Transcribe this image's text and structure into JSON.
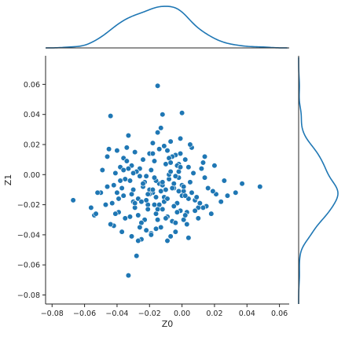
{
  "colors": {
    "points": "#1f77b4",
    "point_edge": "#ffffff",
    "axis": "#262626",
    "kde": "#1f77b4"
  },
  "chart_data": {
    "type": "scatter",
    "subtype": "jointplot-with-marginal-kde",
    "title": "",
    "xlabel": "Z0",
    "ylabel": "Z1",
    "xlim": [
      -0.084,
      0.066
    ],
    "ylim": [
      -0.086,
      0.079
    ],
    "x_ticks": [
      -0.08,
      -0.06,
      -0.04,
      -0.02,
      0.0,
      0.02,
      0.04,
      0.06
    ],
    "y_ticks": [
      -0.08,
      -0.06,
      -0.04,
      -0.02,
      0.0,
      0.02,
      0.04,
      0.06
    ],
    "x_tick_labels": [
      "−0.08",
      "−0.06",
      "−0.04",
      "−0.02",
      "0.00",
      "0.02",
      "0.04",
      "0.06"
    ],
    "y_tick_labels": [
      "−0.08",
      "−0.06",
      "−0.04",
      "−0.02",
      "0.00",
      "0.02",
      "0.04",
      "0.06"
    ],
    "grid": false,
    "legend": "none",
    "marginals": {
      "top": "kde of Z0",
      "right": "kde of Z1"
    },
    "series": [
      {
        "x": [
          -0.067,
          -0.056,
          -0.054,
          -0.053,
          -0.05,
          -0.049,
          -0.046,
          -0.045,
          -0.044,
          -0.043,
          -0.042,
          -0.041,
          -0.04,
          -0.039,
          -0.038,
          -0.037,
          -0.036,
          -0.035,
          -0.034,
          -0.033,
          -0.032,
          -0.031,
          -0.03,
          -0.029,
          -0.028,
          -0.027,
          -0.026,
          -0.025,
          -0.024,
          -0.023,
          -0.022,
          -0.021,
          -0.02,
          -0.019,
          -0.018,
          -0.017,
          -0.016,
          -0.015,
          -0.014,
          -0.013,
          -0.012,
          -0.011,
          -0.01,
          -0.009,
          -0.008,
          -0.007,
          -0.006,
          -0.005,
          -0.004,
          -0.003,
          -0.002,
          -0.001,
          0.0,
          0.001,
          0.002,
          0.003,
          0.004,
          0.005,
          0.006,
          0.008,
          0.01,
          0.012,
          0.014,
          0.016,
          0.018,
          0.02,
          0.024,
          0.028,
          0.033,
          0.037,
          0.048,
          -0.015,
          -0.013,
          -0.001,
          -0.033,
          -0.029,
          -0.035,
          -0.018,
          -0.042,
          0.013,
          -0.047,
          -0.04,
          -0.036,
          -0.031,
          -0.027,
          -0.024,
          -0.021,
          -0.019,
          -0.016,
          -0.011,
          -0.009,
          -0.006,
          -0.004,
          -0.002,
          0.001,
          0.004,
          0.007,
          0.01,
          0.015,
          0.021,
          -0.044,
          -0.038,
          -0.034,
          -0.03,
          -0.026,
          -0.022,
          -0.017,
          -0.014,
          -0.01,
          -0.007,
          -0.003,
          0.0,
          0.003,
          0.006,
          0.011,
          -0.052,
          -0.046,
          -0.039,
          -0.032,
          -0.028,
          -0.025,
          -0.02,
          -0.016,
          -0.012,
          -0.008,
          -0.005,
          -0.001,
          0.002,
          0.005,
          0.009,
          0.014,
          0.019,
          0.026,
          -0.041,
          -0.036,
          -0.031,
          -0.027,
          -0.023,
          -0.018,
          -0.015,
          -0.011,
          -0.007,
          -0.004,
          0.0,
          0.004,
          0.008,
          0.013,
          -0.037,
          -0.029,
          -0.024,
          -0.019,
          -0.013,
          -0.009,
          -0.005,
          -0.002,
          0.002,
          -0.033,
          -0.026,
          -0.02,
          -0.014,
          -0.008,
          -0.003,
          0.001,
          -0.03,
          -0.022,
          -0.016,
          -0.01,
          -0.006,
          -0.001,
          -0.025,
          -0.017,
          -0.012,
          -0.007,
          -0.002,
          -0.021,
          -0.015,
          -0.009,
          -0.004,
          -0.018,
          -0.012
        ],
        "y": [
          -0.017,
          -0.022,
          -0.027,
          -0.026,
          -0.012,
          0.003,
          0.012,
          0.017,
          0.039,
          -0.019,
          -0.034,
          0.001,
          -0.012,
          -0.025,
          0.005,
          -0.038,
          0.011,
          -0.029,
          0.018,
          -0.067,
          -0.004,
          -0.041,
          -0.01,
          -0.022,
          -0.054,
          -0.016,
          0.004,
          -0.043,
          -0.008,
          -0.03,
          -0.001,
          -0.02,
          0.014,
          -0.039,
          -0.012,
          0.009,
          -0.026,
          0.059,
          -0.006,
          -0.035,
          0.04,
          -0.015,
          0.007,
          -0.044,
          -0.003,
          0.022,
          -0.031,
          -0.009,
          0.013,
          -0.019,
          0.002,
          -0.024,
          0.041,
          -0.011,
          0.01,
          -0.033,
          -0.042,
          -0.005,
          0.018,
          -0.017,
          -0.022,
          0.004,
          0.012,
          -0.009,
          -0.026,
          0.006,
          -0.018,
          -0.014,
          -0.012,
          -0.006,
          -0.008,
          0.028,
          0.031,
          0.024,
          0.026,
          0.015,
          -0.003,
          0.021,
          -0.007,
          0.008,
          -0.02,
          0.016,
          -0.014,
          0.006,
          -0.027,
          0.01,
          -0.023,
          0.003,
          -0.036,
          0.019,
          -0.028,
          0.012,
          -0.038,
          0.007,
          -0.03,
          -0.016,
          0.001,
          -0.029,
          -0.021,
          -0.013,
          -0.033,
          -0.004,
          0.009,
          -0.018,
          -0.001,
          -0.037,
          -0.02,
          0.017,
          -0.01,
          -0.041,
          0.006,
          -0.014,
          -0.025,
          -0.012,
          -0.019,
          -0.012,
          -0.008,
          -0.016,
          -0.028,
          0.002,
          -0.032,
          -0.01,
          -0.004,
          -0.023,
          0.011,
          -0.006,
          0.014,
          -0.027,
          0.02,
          -0.015,
          -0.002,
          -0.011,
          -0.004,
          -0.026,
          0.003,
          -0.013,
          -0.044,
          -0.005,
          0.014,
          -0.03,
          -0.018,
          0.008,
          -0.032,
          -0.007,
          0.005,
          -0.024,
          -0.022,
          -0.009,
          -0.019,
          -0.006,
          -0.04,
          -0.011,
          0.016,
          -0.021,
          -0.002,
          -0.014,
          0.004,
          -0.035,
          -0.013,
          -0.02,
          0.0,
          -0.025,
          -0.008,
          0.001,
          -0.017,
          -0.015,
          -0.029,
          -0.009,
          0.005,
          -0.018,
          -0.002,
          -0.007,
          0.002,
          -0.011,
          -0.013,
          -0.023,
          -0.016,
          -0.001,
          -0.01,
          -0.005
        ]
      }
    ]
  }
}
